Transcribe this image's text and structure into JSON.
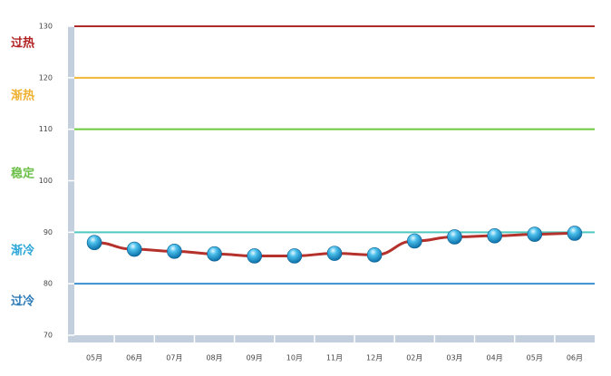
{
  "chart_data": {
    "type": "line",
    "categories": [
      "05月",
      "06月",
      "07月",
      "08月",
      "09月",
      "10月",
      "11月",
      "12月",
      "02月",
      "03月",
      "04月",
      "05月",
      "06月"
    ],
    "series": [
      {
        "color": "#b5312c",
        "values": [
          88,
          86.7,
          86.3,
          85.8,
          85.4,
          85.4,
          85.9,
          85.6,
          88.3,
          89.1,
          89.3,
          89.6,
          89.8
        ]
      }
    ],
    "ylim": [
      70,
      130
    ],
    "yticks": [
      70,
      80,
      90,
      100,
      110,
      120,
      130
    ],
    "reference_lines": [
      {
        "value": 130,
        "color": "#b02a2a"
      },
      {
        "value": 120,
        "color": "#f2b632"
      },
      {
        "value": 110,
        "color": "#6cc93c"
      },
      {
        "value": 90,
        "color": "#4fc9c0"
      },
      {
        "value": 80,
        "color": "#3a8fd0"
      }
    ],
    "zones": [
      {
        "label": "过热",
        "color": "#b22222"
      },
      {
        "label": "渐热",
        "color": "#f0b030"
      },
      {
        "label": "稳定",
        "color": "#6cc04a"
      },
      {
        "label": "渐冷",
        "color": "#2aa6d8"
      },
      {
        "label": "过冷",
        "color": "#2a7ab8"
      }
    ]
  }
}
